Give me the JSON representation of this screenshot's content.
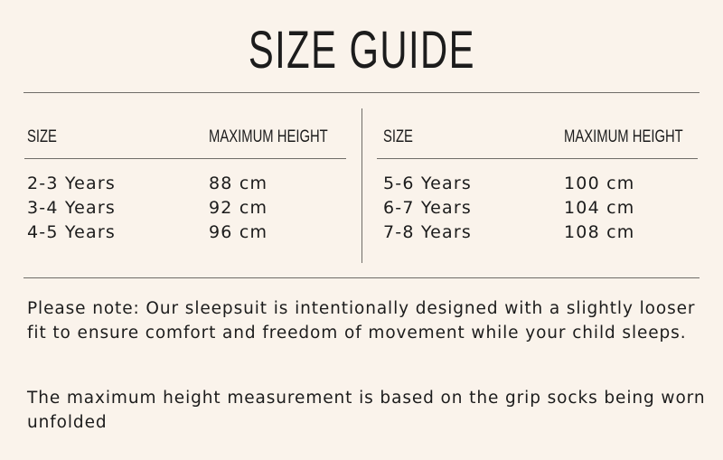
{
  "title": "SIZE GUIDE",
  "tables": [
    {
      "headers": {
        "size": "SIZE",
        "height": "MAXIMUM HEIGHT"
      },
      "rows": [
        {
          "size": "2-3 Years",
          "height": "88 cm"
        },
        {
          "size": "3-4 Years",
          "height": "92 cm"
        },
        {
          "size": "4-5 Years",
          "height": "96 cm"
        }
      ]
    },
    {
      "headers": {
        "size": "SIZE",
        "height": "MAXIMUM HEIGHT"
      },
      "rows": [
        {
          "size": "5-6 Years",
          "height": "100 cm"
        },
        {
          "size": "6-7 Years",
          "height": "104 cm"
        },
        {
          "size": "7-8 Years",
          "height": "108 cm"
        }
      ]
    }
  ],
  "notes": [
    "Please note: Our sleepsuit is intentionally designed with a slightly looser fit to ensure comfort and freedom of movement while your child sleeps.",
    "The maximum height measurement is based on the grip socks being worn unfolded"
  ]
}
